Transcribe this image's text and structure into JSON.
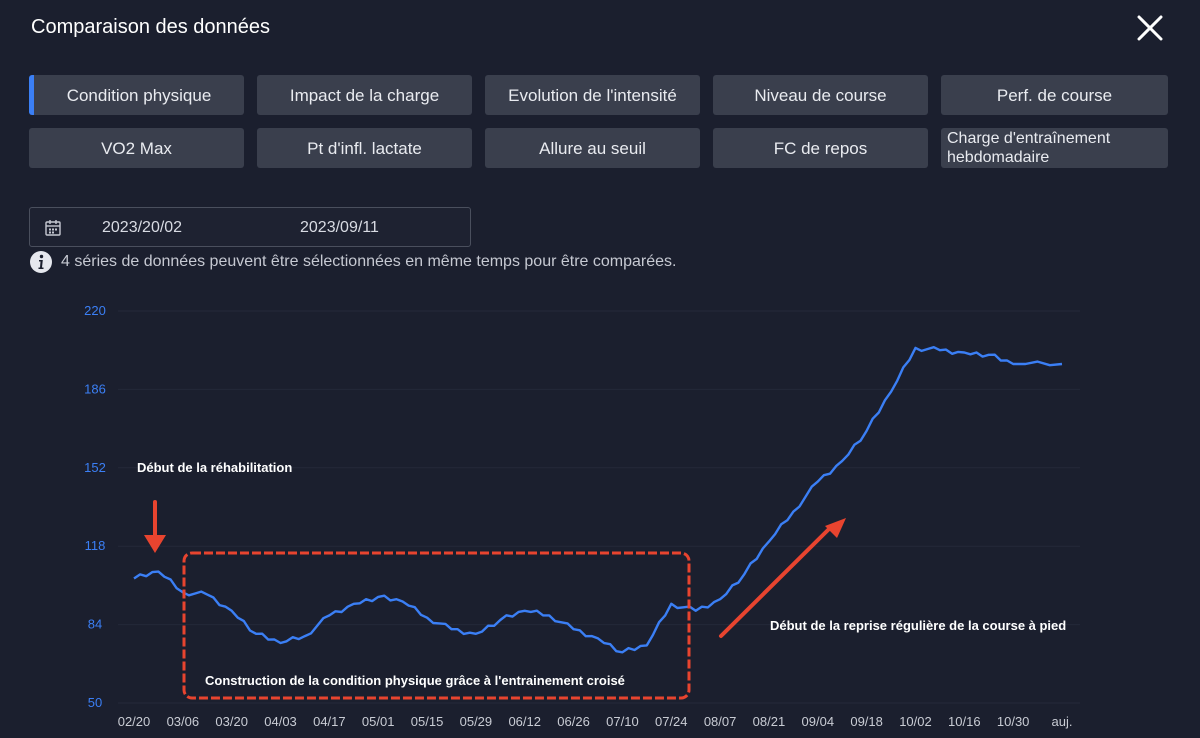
{
  "header": {
    "title": "Comparaison des données",
    "close_icon": "close-icon"
  },
  "tabs": [
    {
      "label": "Condition physique",
      "active": true
    },
    {
      "label": "Impact de la charge"
    },
    {
      "label": "Evolution de l'intensité"
    },
    {
      "label": "Niveau de course"
    },
    {
      "label": "Perf. de course"
    },
    {
      "label": "VO2 Max"
    },
    {
      "label": "Pt d'infl. lactate"
    },
    {
      "label": "Allure au seuil"
    },
    {
      "label": "FC de repos"
    },
    {
      "label": "Charge d'entraînement hebdomadaire"
    }
  ],
  "date_range": {
    "icon": "calendar-icon",
    "start": "2023/20/02",
    "end": "2023/09/11"
  },
  "info": {
    "icon": "info-icon",
    "text": "4 séries de données peuvent être sélectionnées en même temps pour être comparées."
  },
  "chart_data": {
    "type": "line",
    "x_ticks": [
      "02/20",
      "03/06",
      "03/20",
      "04/03",
      "04/17",
      "05/01",
      "05/15",
      "05/29",
      "06/12",
      "06/26",
      "07/10",
      "07/24",
      "08/07",
      "08/21",
      "09/04",
      "09/18",
      "10/02",
      "10/16",
      "10/30",
      "auj."
    ],
    "y_ticks": [
      220,
      186,
      152,
      118,
      84,
      50
    ],
    "ylim": [
      50,
      220
    ],
    "line_color": "#3b7ff5",
    "series": [
      {
        "x": [
          "02/20",
          "02/27",
          "03/06",
          "03/13",
          "03/20",
          "03/27",
          "04/03",
          "04/10",
          "04/17",
          "04/24",
          "05/01",
          "05/08",
          "05/15",
          "05/22",
          "05/29",
          "06/05",
          "06/12",
          "06/19",
          "06/26",
          "07/03",
          "07/10",
          "07/17",
          "07/24",
          "07/31",
          "08/07",
          "08/14",
          "08/21",
          "08/28",
          "09/04",
          "09/11",
          "09/18",
          "09/25",
          "10/02",
          "10/09",
          "10/16",
          "10/23",
          "10/30",
          "auj."
        ],
        "values": [
          104,
          107,
          98,
          97,
          90,
          80,
          76,
          79,
          88,
          93,
          96,
          94,
          87,
          82,
          80,
          86,
          90,
          88,
          82,
          78,
          72,
          75,
          93,
          90,
          95,
          106,
          120,
          133,
          146,
          155,
          168,
          185,
          204,
          203,
          202,
          201,
          197,
          197
        ]
      }
    ],
    "annotations": [
      "Début de la réhabilitation",
      "Construction de la condition physique grâce à l'entrainement croisé",
      "Début de la reprise régulière de la course à pied"
    ]
  }
}
